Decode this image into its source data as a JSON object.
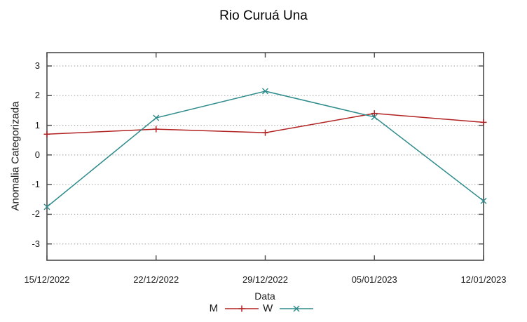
{
  "title": "Rio Curuá Una",
  "colors": {
    "background": "#ffffff",
    "border": "#4a4a4a",
    "grid": "#ababab",
    "text": "#1a1a1a",
    "series_m": "#b22222",
    "series_w": "#2e8b8b"
  },
  "chart_data": {
    "type": "line",
    "title": "Rio Curuá Una",
    "xlabel": "Data",
    "ylabel": "Anomalia Categorizada",
    "categories": [
      "15/12/2022",
      "22/12/2022",
      "29/12/2022",
      "05/01/2023",
      "12/01/2023"
    ],
    "series": [
      {
        "name": "M",
        "color": "#b22222",
        "marker": "plus",
        "values": [
          0.7,
          0.87,
          0.75,
          1.4,
          1.1
        ]
      },
      {
        "name": "W",
        "color": "#2e8b8b",
        "marker": "cross",
        "values": [
          -1.75,
          1.25,
          2.15,
          1.28,
          -1.55
        ]
      }
    ],
    "yticks": [
      -3,
      -2,
      -1,
      0,
      1,
      2,
      3
    ],
    "ylim": [
      -3.55,
      3.45
    ],
    "grid": "horizontal-dotted",
    "tick_style": "inside-mirrored",
    "legend_position": "bottom-center"
  }
}
